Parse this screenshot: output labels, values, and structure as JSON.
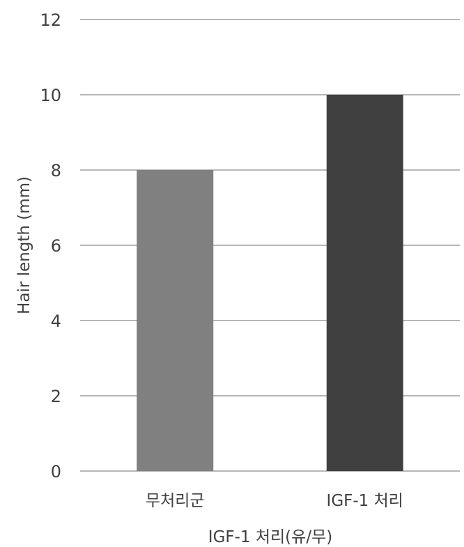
{
  "chart_data": {
    "type": "bar",
    "categories": [
      "무처리군",
      "IGF-1 처리"
    ],
    "values": [
      8,
      10
    ],
    "bar_colors": [
      "#808080",
      "#404040"
    ],
    "xlabel": "IGF-1 처리(유/무)",
    "ylabel": "Hair length (mm)",
    "ylim": [
      0,
      12
    ],
    "yticks": [
      0,
      2,
      4,
      6,
      8,
      10,
      12
    ],
    "grid": true
  }
}
